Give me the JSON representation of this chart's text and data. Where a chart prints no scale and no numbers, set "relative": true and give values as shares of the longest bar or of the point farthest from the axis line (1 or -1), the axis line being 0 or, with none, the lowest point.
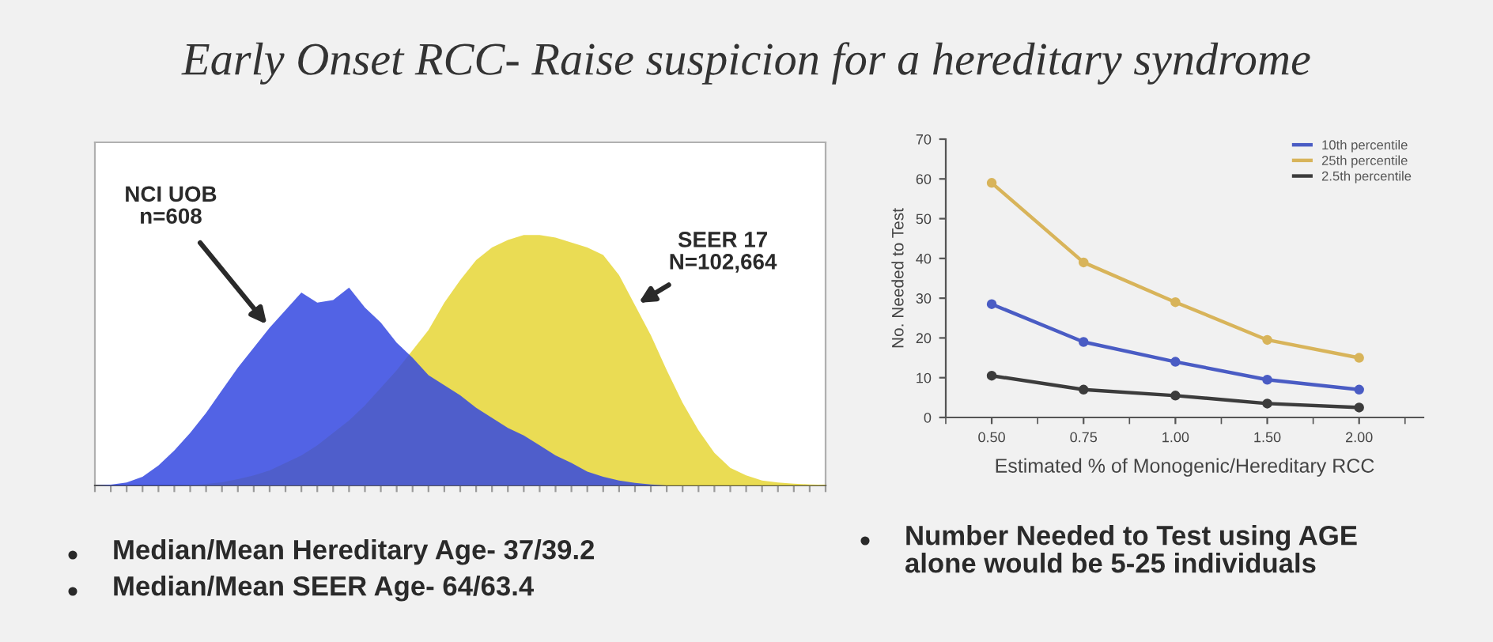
{
  "chart_data": [
    {
      "type": "area",
      "title": "Early Onset RCC- Raise suspicion for a hereditary syndrome",
      "relative": true,
      "legend": false,
      "categories": [
        null,
        null,
        null,
        null,
        null,
        null,
        null,
        null,
        null,
        null,
        null,
        null,
        null,
        null,
        null,
        null,
        null,
        null,
        null,
        null,
        null,
        null,
        null,
        null,
        null,
        null,
        null,
        null,
        null,
        null,
        null,
        null,
        null,
        null,
        null,
        null,
        null,
        null,
        null,
        null,
        null,
        null,
        null,
        null,
        null,
        null,
        null
      ],
      "series": [
        {
          "name": "NCI UOB\nn=608",
          "color": "#3448e0",
          "values": [
            0,
            0.003,
            0.012,
            0.035,
            0.08,
            0.14,
            0.21,
            0.29,
            0.38,
            0.47,
            0.55,
            0.63,
            0.7,
            0.77,
            0.73,
            0.74,
            0.79,
            0.71,
            0.65,
            0.57,
            0.51,
            0.44,
            0.4,
            0.36,
            0.31,
            0.27,
            0.23,
            0.2,
            0.16,
            0.12,
            0.09,
            0.055,
            0.035,
            0.02,
            0.01,
            0.004,
            0,
            0,
            0,
            0,
            0,
            0,
            0,
            0,
            0,
            0,
            0
          ]
        },
        {
          "name": "SEER 17\nN=102,664",
          "color": "#e6d636",
          "values": [
            0,
            0,
            0,
            0,
            0,
            0,
            0.002,
            0.006,
            0.013,
            0.025,
            0.04,
            0.06,
            0.09,
            0.12,
            0.16,
            0.21,
            0.26,
            0.32,
            0.39,
            0.46,
            0.54,
            0.62,
            0.73,
            0.82,
            0.9,
            0.95,
            0.98,
            1.0,
            1.0,
            0.99,
            0.97,
            0.95,
            0.92,
            0.84,
            0.72,
            0.6,
            0.46,
            0.33,
            0.22,
            0.13,
            0.07,
            0.04,
            0.02,
            0.012,
            0.007,
            0.004,
            0.002
          ]
        }
      ],
      "annotations": [
        "Median/Mean Hereditary Age- 37/39.2",
        "Median/Mean SEER Age- 64/63.4"
      ]
    },
    {
      "type": "line",
      "categories": [
        "0.50",
        "0.75",
        "1.00",
        "1.50",
        "2.00"
      ],
      "series": [
        {
          "name": "10th percentile",
          "color": "#4a5cc4",
          "values": [
            28.5,
            19,
            14,
            9.5,
            7
          ]
        },
        {
          "name": "25th percentile",
          "color": "#d8b45a",
          "values": [
            59,
            39,
            29,
            19.5,
            15
          ]
        },
        {
          "name": "2.5th percentile",
          "color": "#3c3c3c",
          "values": [
            10.5,
            7,
            5.5,
            3.5,
            2.5
          ]
        }
      ],
      "ylim": [
        0,
        70
      ],
      "yticks": [
        0,
        10,
        20,
        30,
        40,
        50,
        60,
        70
      ],
      "xlabel": "Estimated % of Monogenic/Hereditary RCC",
      "ylabel": "No. Needed to Test",
      "legend": "top right",
      "marker": "circle",
      "grid": false,
      "annotations": [
        "Number Needed to Test using AGE\nalone would be 5-25 individuals"
      ]
    }
  ]
}
